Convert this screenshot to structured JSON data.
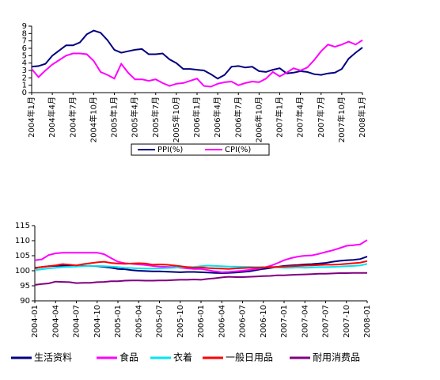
{
  "chart_data": [
    {
      "type": "line",
      "categories": [
        "2004年1月",
        null,
        null,
        "2004年4月",
        null,
        null,
        "2004年7月",
        null,
        null,
        "2004年10月",
        null,
        null,
        "2005年1月",
        null,
        null,
        "2005年4月",
        null,
        null,
        "2005年7月",
        null,
        null,
        "2005年10月",
        null,
        null,
        "2006年1月",
        null,
        null,
        "2006年4月",
        null,
        null,
        "2006年7月",
        null,
        null,
        "2006年10月",
        null,
        null,
        "2007年1月",
        null,
        null,
        "2007年4月",
        null,
        null,
        "2007年7月",
        null,
        null,
        "2007年10月",
        null,
        null,
        "2008年1月"
      ],
      "ylim": [
        0,
        9
      ],
      "yticks": [
        0,
        1,
        2,
        3,
        4,
        5,
        6,
        7,
        8,
        9
      ],
      "legend": "bottom",
      "series": [
        {
          "name": "PPI(%)",
          "color": "#000080",
          "values": [
            3.5,
            3.6,
            3.9,
            5.0,
            5.7,
            6.4,
            6.4,
            6.8,
            7.9,
            8.4,
            8.1,
            7.1,
            5.8,
            5.4,
            5.6,
            5.8,
            5.9,
            5.2,
            5.2,
            5.3,
            4.5,
            4.0,
            3.2,
            3.2,
            3.1,
            3.0,
            2.5,
            1.9,
            2.4,
            3.5,
            3.6,
            3.4,
            3.5,
            2.9,
            2.8,
            3.1,
            3.3,
            2.6,
            2.7,
            2.9,
            2.8,
            2.5,
            2.4,
            2.6,
            2.7,
            3.2,
            4.6,
            5.4,
            6.1
          ]
        },
        {
          "name": "CPI(%)",
          "color": "#ff00ff",
          "values": [
            3.2,
            2.1,
            3.0,
            3.8,
            4.4,
            5.0,
            5.3,
            5.3,
            5.2,
            4.3,
            2.8,
            2.4,
            1.9,
            3.9,
            2.7,
            1.8,
            1.8,
            1.6,
            1.8,
            1.3,
            0.9,
            1.2,
            1.3,
            1.6,
            1.9,
            0.9,
            0.8,
            1.2,
            1.4,
            1.5,
            1.0,
            1.3,
            1.5,
            1.4,
            1.9,
            2.8,
            2.2,
            2.7,
            3.3,
            3.0,
            3.4,
            4.4,
            5.6,
            6.5,
            6.2,
            6.5,
            6.9,
            6.5,
            7.1
          ]
        }
      ]
    },
    {
      "type": "line",
      "categories": [
        "2004-01",
        null,
        null,
        "2004-04",
        null,
        null,
        "2004-07",
        null,
        null,
        "2004-10",
        null,
        null,
        "2005-01",
        null,
        null,
        "2005-04",
        null,
        null,
        "2005-07",
        null,
        null,
        "2005-10",
        null,
        null,
        "2006-01",
        null,
        null,
        "2006-04",
        null,
        null,
        "2006-07",
        null,
        null,
        "2006-10",
        null,
        null,
        "2007-01",
        null,
        null,
        "2007-04",
        null,
        null,
        "2007-07",
        null,
        null,
        "2007-10",
        null,
        null,
        "2008-01"
      ],
      "ylim": [
        90,
        115
      ],
      "yticks": [
        90,
        95,
        100,
        105,
        110,
        115
      ],
      "legend": "bottom",
      "series": [
        {
          "name": "生活资料",
          "color": "#000080",
          "values": [
            101.0,
            101.2,
            101.5,
            101.6,
            101.7,
            101.8,
            101.7,
            101.6,
            101.6,
            101.5,
            101.3,
            101.0,
            100.6,
            100.5,
            100.2,
            100.0,
            99.9,
            99.8,
            99.8,
            99.7,
            99.6,
            99.5,
            99.6,
            99.6,
            99.5,
            99.4,
            99.3,
            99.2,
            99.3,
            99.4,
            99.6,
            99.8,
            100.2,
            100.6,
            100.9,
            101.3,
            101.6,
            101.8,
            101.9,
            102.1,
            102.2,
            102.4,
            102.6,
            103.0,
            103.3,
            103.5,
            103.6,
            103.9,
            104.7
          ]
        },
        {
          "name": "食品",
          "color": "#ff00ff",
          "values": [
            103.5,
            103.8,
            105.2,
            105.8,
            106.0,
            106.0,
            106.0,
            106.0,
            106.0,
            106.0,
            105.5,
            104.2,
            103.0,
            102.5,
            102.3,
            102.1,
            101.9,
            101.6,
            101.4,
            101.3,
            101.2,
            101.0,
            100.8,
            100.6,
            100.6,
            100.2,
            99.8,
            99.5,
            99.6,
            99.8,
            100.0,
            100.3,
            100.6,
            101.0,
            101.6,
            102.5,
            103.5,
            104.2,
            104.7,
            105.0,
            105.1,
            105.6,
            106.2,
            106.8,
            107.5,
            108.3,
            108.5,
            108.8,
            110.2
          ]
        },
        {
          "name": "衣着",
          "color": "#00e5ee",
          "values": [
            100.2,
            100.5,
            100.8,
            101.0,
            101.2,
            101.3,
            101.4,
            101.5,
            101.6,
            101.6,
            101.5,
            101.4,
            101.2,
            101.0,
            100.9,
            100.8,
            100.7,
            100.7,
            100.8,
            100.9,
            101.0,
            101.1,
            101.2,
            101.3,
            101.5,
            101.7,
            101.6,
            101.5,
            101.4,
            101.4,
            101.3,
            101.3,
            101.2,
            101.2,
            101.1,
            101.1,
            101.0,
            101.0,
            101.1,
            101.0,
            101.1,
            101.2,
            101.2,
            101.3,
            101.4,
            101.5,
            101.6,
            101.8,
            102.3
          ]
        },
        {
          "name": "一般日用品",
          "color": "#ff0000",
          "values": [
            100.8,
            101.3,
            101.5,
            101.8,
            102.2,
            102.0,
            101.8,
            102.2,
            102.5,
            102.8,
            103.0,
            102.6,
            102.4,
            102.3,
            102.4,
            102.5,
            102.4,
            102.0,
            102.1,
            102.0,
            101.8,
            101.5,
            101.2,
            101.0,
            101.1,
            100.9,
            100.8,
            100.7,
            100.6,
            100.8,
            100.9,
            101.0,
            101.0,
            101.1,
            101.2,
            101.3,
            101.4,
            101.5,
            101.6,
            101.7,
            101.8,
            101.9,
            102.0,
            102.0,
            102.1,
            102.3,
            102.5,
            102.7,
            103.2
          ]
        },
        {
          "name": "耐用消费品",
          "color": "#800080",
          "values": [
            95.3,
            95.6,
            95.8,
            96.4,
            96.3,
            96.2,
            95.9,
            96.0,
            96.0,
            96.2,
            96.3,
            96.5,
            96.5,
            96.7,
            96.8,
            96.8,
            96.7,
            96.7,
            96.8,
            96.8,
            96.9,
            97.0,
            97.0,
            97.1,
            97.0,
            97.3,
            97.5,
            97.8,
            98.0,
            97.9,
            97.9,
            98.0,
            98.1,
            98.2,
            98.3,
            98.5,
            98.5,
            98.6,
            98.7,
            98.8,
            98.9,
            99.0,
            99.0,
            99.1,
            99.2,
            99.2,
            99.3,
            99.3,
            99.3
          ]
        }
      ]
    }
  ]
}
